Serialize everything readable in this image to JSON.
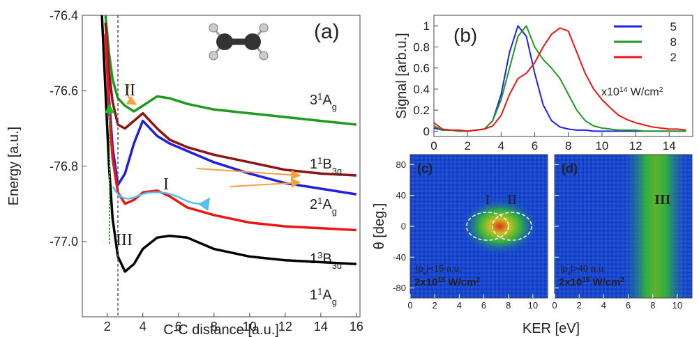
{
  "chart_data": [
    {
      "type": "line",
      "panel_label": "(a)",
      "xlabel": "C-C distance [a.u.]",
      "ylabel": "Energy [a.u.]",
      "xlim": [
        0.6,
        16.2
      ],
      "ylim": [
        -77.2,
        -76.4
      ],
      "xticks": [
        2,
        4,
        6,
        8,
        10,
        12,
        14,
        16
      ],
      "yticks": [
        -76.4,
        -76.6,
        -76.8,
        {
          "value": -77,
          "label": "-77.0"
        }
      ],
      "x": [
        1.7,
        1.9,
        2.1,
        2.3,
        2.6,
        3.0,
        3.5,
        4.0,
        4.8,
        5.5,
        6.5,
        8,
        10,
        12,
        14,
        16
      ],
      "series": [
        {
          "name": [
            "3",
            "1",
            "A",
            "g"
          ],
          "color": "#1e9a1e",
          "values": [
            null,
            -76.4,
            -76.5,
            -76.57,
            -76.62,
            -76.64,
            -76.655,
            -76.64,
            -76.615,
            -76.62,
            -76.635,
            -76.65,
            -76.66,
            -76.67,
            -76.68,
            -76.69
          ]
        },
        {
          "name": [
            "1",
            "1",
            "B",
            "3g"
          ],
          "color": "#8b1414",
          "values": [
            null,
            -76.42,
            -76.55,
            -76.63,
            -76.69,
            -76.7,
            -76.68,
            -76.66,
            -76.7,
            -76.73,
            -76.75,
            -76.77,
            -76.79,
            -76.81,
            -76.82,
            -76.825
          ]
        },
        {
          "name": [
            "2",
            "1",
            "A",
            "g"
          ],
          "color": "#1f1fdc",
          "values": [
            null,
            -76.45,
            -76.62,
            -76.75,
            -76.85,
            -76.82,
            -76.74,
            -76.68,
            -76.72,
            -76.74,
            -76.76,
            -76.79,
            -76.82,
            -76.845,
            -76.86,
            -76.875
          ]
        },
        {
          "name": [
            "1",
            "3",
            "B",
            "3u"
          ],
          "color": "#ee1414",
          "values": [
            null,
            -76.45,
            -76.65,
            -76.78,
            -76.87,
            -76.9,
            -76.89,
            -76.87,
            -76.865,
            -76.88,
            -76.91,
            -76.93,
            -76.95,
            -76.96,
            -76.965,
            -76.97
          ]
        },
        {
          "name": [
            "1",
            "1",
            "A",
            "g"
          ],
          "color": "#000000",
          "values": [
            -76.4,
            -76.6,
            -76.8,
            -76.94,
            -77.04,
            -77.08,
            -77.06,
            -77.02,
            -76.99,
            -76.985,
            -76.99,
            -77.02,
            -77.04,
            -77.05,
            -77.055,
            -77.06
          ]
        }
      ],
      "dashed_line_x": 2.6,
      "annotations": [
        "II",
        "I",
        "III"
      ]
    },
    {
      "type": "line",
      "panel_label": "(b)",
      "ylabel": "Signal [arb.u.]",
      "xlim": [
        0,
        15.4
      ],
      "ylim": [
        -0.05,
        1.1
      ],
      "xticks": [
        0,
        2,
        4,
        6,
        8,
        10,
        12,
        14
      ],
      "yticks": [
        0,
        0.2,
        0.4,
        0.6,
        0.8,
        1
      ],
      "x": [
        0,
        0.5,
        1,
        1.5,
        2,
        2.5,
        3,
        3.5,
        4,
        4.5,
        5,
        5.5,
        6,
        6.5,
        7,
        7.5,
        8,
        8.5,
        9,
        9.5,
        10,
        10.5,
        11,
        11.5,
        12,
        12.5,
        13,
        13.5,
        14,
        14.5,
        15
      ],
      "series": [
        {
          "name": "5",
          "color": "#1f1fee",
          "values": [
            0.03,
            0.01,
            0.01,
            0,
            0,
            0.01,
            0.02,
            0.1,
            0.35,
            0.75,
            1.0,
            0.9,
            0.55,
            0.25,
            0.1,
            0.04,
            0.02,
            0.01,
            0.01,
            0,
            0,
            0,
            0,
            0,
            0,
            0,
            0,
            0,
            0,
            0,
            0
          ]
        },
        {
          "name": "8",
          "color": "#1e9a1e",
          "values": [
            0.05,
            0.01,
            0.01,
            0,
            0,
            0.01,
            0.02,
            0.1,
            0.3,
            0.6,
            0.9,
            1.0,
            0.8,
            0.68,
            0.6,
            0.5,
            0.35,
            0.2,
            0.1,
            0.05,
            0.03,
            0.02,
            0.01,
            0.01,
            0.01,
            0,
            0,
            0,
            0,
            0,
            0
          ]
        },
        {
          "name": "2",
          "color": "#ee1414",
          "values": [
            0.08,
            0.02,
            0.01,
            0.01,
            0,
            0.01,
            0.02,
            0.05,
            0.15,
            0.35,
            0.5,
            0.55,
            0.65,
            0.8,
            0.92,
            0.98,
            0.95,
            0.75,
            0.55,
            0.4,
            0.3,
            0.22,
            0.15,
            0.11,
            0.08,
            0.06,
            0.04,
            0.03,
            0.02,
            0.02,
            0.01
          ]
        }
      ],
      "legend": "upper right",
      "legend_note": [
        "x10",
        "14",
        " W/cm",
        "2"
      ]
    },
    {
      "type": "heatmap",
      "panel_label": "(c)",
      "xlabel": "KER [eV]",
      "ylabel": "θ [deg.]",
      "xlim": [
        0,
        11.2
      ],
      "ylim": [
        -93,
        93
      ],
      "xticks": [
        0,
        2,
        4,
        6,
        8,
        10
      ],
      "yticks": [
        80,
        40,
        0,
        -40,
        -80
      ],
      "annotations": [
        "I",
        "II"
      ],
      "cut": [
        "|p",
        "x",
        "|<15 a.u."
      ],
      "intensity": [
        "2x10",
        "15",
        " W/cm",
        "2"
      ]
    },
    {
      "type": "heatmap",
      "panel_label": "(d)",
      "xlim": [
        0,
        11.2
      ],
      "ylim": [
        -93,
        93
      ],
      "xticks": [
        0,
        2,
        4,
        6,
        8,
        10
      ],
      "yticks": [
        80,
        40,
        0,
        -40,
        -80
      ],
      "annotations": [
        "III"
      ],
      "cut": [
        "|p",
        "x",
        "|>40 a.u."
      ],
      "intensity": [
        "2x10",
        "15",
        " W/cm",
        "2"
      ]
    }
  ]
}
